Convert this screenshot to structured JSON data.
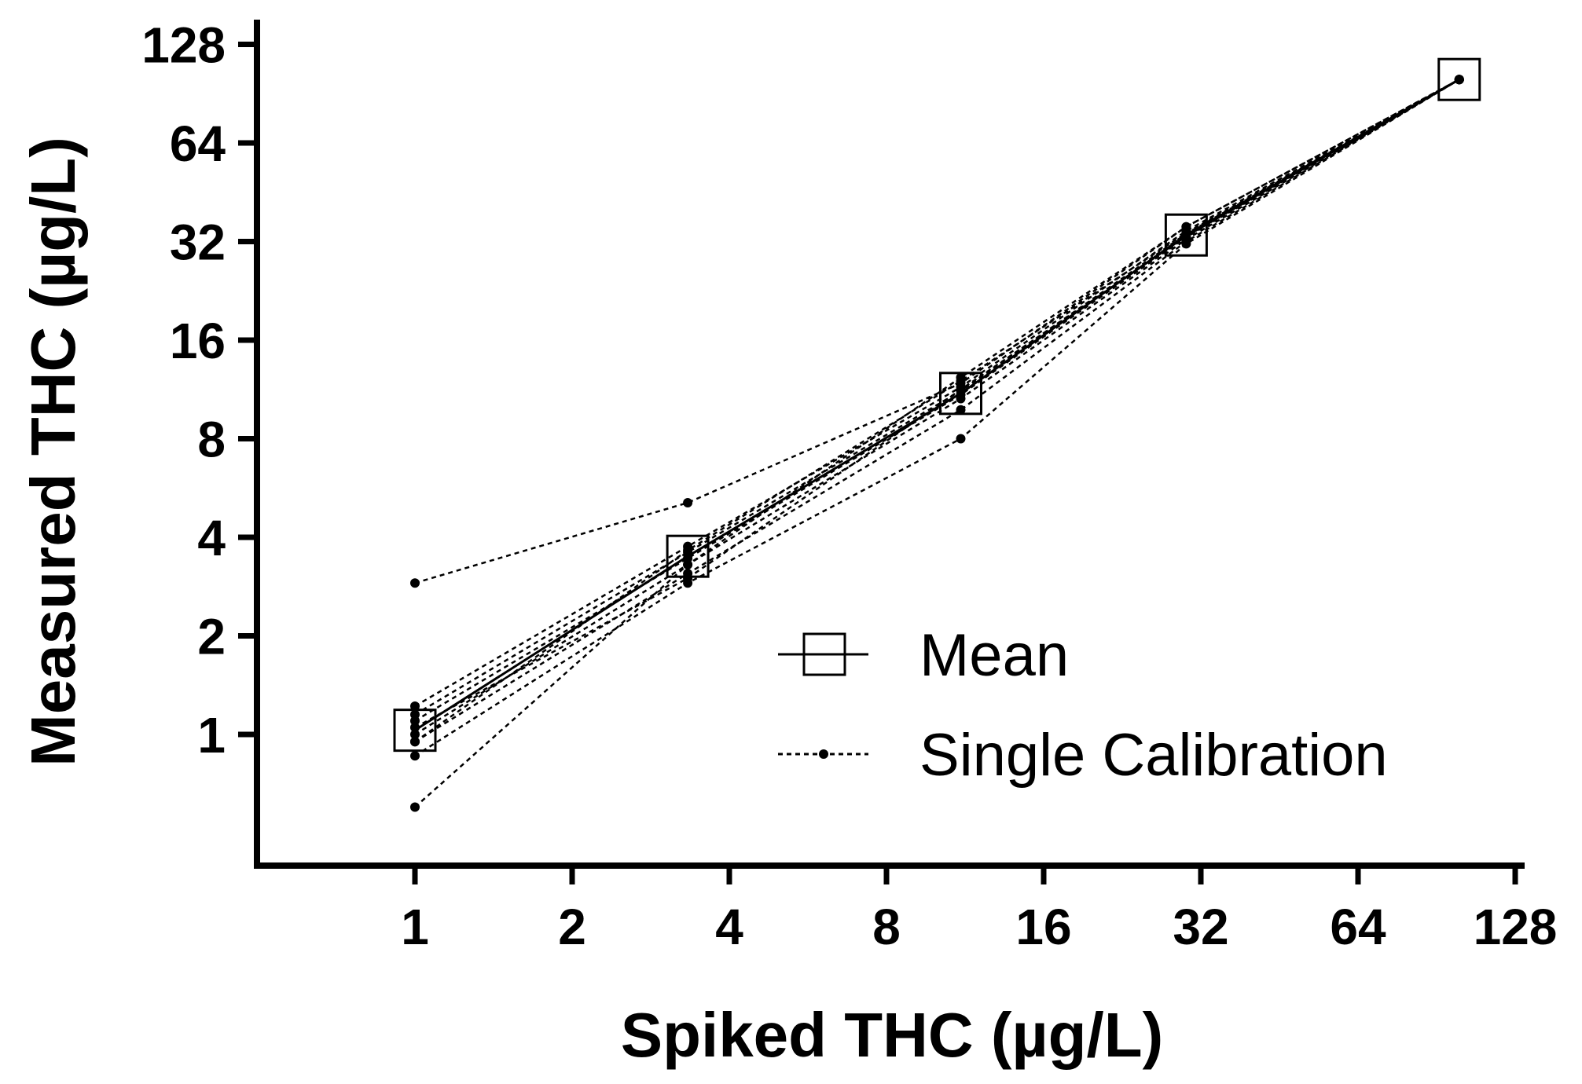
{
  "chart_data": {
    "type": "line",
    "xlabel": "Spiked THC (µg/L)",
    "ylabel": "Measured THC (µg/L)",
    "x_scale": "log2",
    "y_scale": "log2",
    "xlim": [
      0.5,
      150
    ],
    "ylim": [
      0.5,
      128
    ],
    "x_ticks": [
      1,
      2,
      4,
      8,
      16,
      32,
      64,
      128
    ],
    "y_ticks": [
      1,
      2,
      4,
      8,
      16,
      32,
      64,
      128
    ],
    "x_tick_labels": [
      "1",
      "2",
      "4",
      "8",
      "16",
      "32",
      "64",
      "128"
    ],
    "y_tick_labels": [
      "1",
      "2",
      "4",
      "8",
      "16",
      "32",
      "64",
      "128"
    ],
    "x": [
      1,
      3.33,
      11.1,
      30,
      100
    ],
    "series": [
      {
        "name": "Mean",
        "style": "solid",
        "marker": "square",
        "values": [
          1.03,
          3.5,
          11.0,
          33.5,
          100
        ]
      },
      {
        "name": "Single Calibration",
        "style": "dashed",
        "marker": "dot",
        "values": [
          2.9,
          5.1,
          11.8,
          35.5,
          100
        ]
      },
      {
        "name": "Single Calibration",
        "style": "dashed",
        "marker": "dot",
        "values": [
          0.6,
          3.3,
          12.3,
          35.5,
          100
        ]
      },
      {
        "name": "Single Calibration",
        "style": "dashed",
        "marker": "dot",
        "values": [
          1.22,
          3.75,
          11.5,
          34.5,
          100
        ]
      },
      {
        "name": "Single Calibration",
        "style": "dashed",
        "marker": "dot",
        "values": [
          1.15,
          3.6,
          11.2,
          33.8,
          100
        ]
      },
      {
        "name": "Single Calibration",
        "style": "dashed",
        "marker": "dot",
        "values": [
          1.1,
          3.45,
          10.9,
          33.0,
          100
        ]
      },
      {
        "name": "Single Calibration",
        "style": "dashed",
        "marker": "dot",
        "values": [
          1.0,
          3.3,
          10.6,
          32.5,
          100
        ]
      },
      {
        "name": "Single Calibration",
        "style": "dashed",
        "marker": "dot",
        "values": [
          0.95,
          3.1,
          9.8,
          32.0,
          100
        ]
      },
      {
        "name": "Single Calibration",
        "style": "dashed",
        "marker": "dot",
        "values": [
          0.86,
          2.9,
          8.0,
          31.5,
          100
        ]
      },
      {
        "name": "Single Calibration",
        "style": "dashed",
        "marker": "dot",
        "values": [
          0.95,
          3.65,
          12.0,
          34.0,
          100
        ]
      },
      {
        "name": "Single Calibration",
        "style": "dashed",
        "marker": "dot",
        "values": [
          1.05,
          3.0,
          11.3,
          33.2,
          100
        ]
      }
    ],
    "legend": {
      "placement": "center-right",
      "entries": [
        {
          "label": "Mean",
          "style": "solid",
          "marker": "square"
        },
        {
          "label": "Single Calibration",
          "style": "dashed",
          "marker": "dot"
        }
      ]
    },
    "grid": false
  }
}
